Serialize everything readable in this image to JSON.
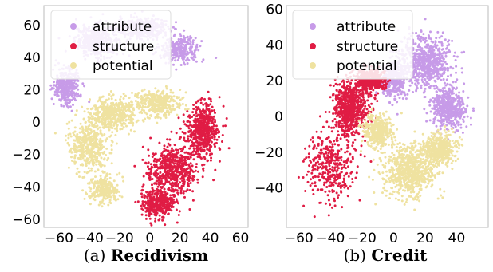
{
  "colors": {
    "attribute": "#c79be8",
    "structure": "#e01c44",
    "potential": "#efe2a0"
  },
  "chart_data": [
    {
      "type": "scatter",
      "caption_prefix": "(a)",
      "caption_title": "Recidivism",
      "xlim": [
        -70,
        65
      ],
      "ylim": [
        -65,
        72
      ],
      "xticks": [
        "−60",
        "−40",
        "−20",
        "0",
        "20",
        "40",
        "60"
      ],
      "xtick_values": [
        -60,
        -40,
        -20,
        0,
        20,
        40,
        60
      ],
      "yticks": [
        "60",
        "40",
        "20",
        "0",
        "−20",
        "−40",
        "−60"
      ],
      "ytick_values": [
        60,
        40,
        20,
        0,
        -20,
        -40,
        -60
      ],
      "legend_position": "top-left",
      "series": [
        {
          "name": "attribute",
          "color": "#c79be8",
          "clusters": [
            {
              "center": [
                -35,
                50
              ],
              "spread": [
                13,
                9
              ],
              "weight": 1
            },
            {
              "center": [
                -5,
                58
              ],
              "spread": [
                15,
                6
              ],
              "weight": 1
            },
            {
              "center": [
                -55,
                22
              ],
              "spread": [
                8,
                10
              ],
              "weight": 0.8
            },
            {
              "center": [
                20,
                45
              ],
              "spread": [
                12,
                7
              ],
              "weight": 0.6
            }
          ]
        },
        {
          "name": "structure",
          "color": "#e01c44",
          "clusters": [
            {
              "center": [
                15,
                -30
              ],
              "spread": [
                15,
                15
              ],
              "weight": 1
            },
            {
              "center": [
                35,
                -5
              ],
              "spread": [
                10,
                15
              ],
              "weight": 0.9
            },
            {
              "center": [
                5,
                -50
              ],
              "spread": [
                10,
                7
              ],
              "weight": 0.6
            }
          ]
        },
        {
          "name": "potential",
          "color": "#efe2a0",
          "clusters": [
            {
              "center": [
                -40,
                -15
              ],
              "spread": [
                12,
                14
              ],
              "weight": 1
            },
            {
              "center": [
                -25,
                5
              ],
              "spread": [
                14,
                9
              ],
              "weight": 1
            },
            {
              "center": [
                5,
                12
              ],
              "spread": [
                14,
                7
              ],
              "weight": 0.8
            },
            {
              "center": [
                -30,
                -42
              ],
              "spread": [
                9,
                7
              ],
              "weight": 0.6
            }
          ]
        }
      ]
    },
    {
      "type": "scatter",
      "caption_prefix": "(b)",
      "caption_title": "Credit",
      "xlim": [
        -68,
        60
      ],
      "ylim": [
        -62,
        62
      ],
      "xticks": [
        "−60",
        "−40",
        "−20",
        "0",
        "20",
        "40"
      ],
      "xtick_values": [
        -60,
        -40,
        -20,
        0,
        20,
        40
      ],
      "yticks": [
        "60",
        "40",
        "20",
        "0",
        "−20",
        "−40"
      ],
      "ytick_values": [
        60,
        40,
        20,
        0,
        -20,
        -40
      ],
      "legend_position": "top-left",
      "series": [
        {
          "name": "attribute",
          "color": "#c79be8",
          "clusters": [
            {
              "center": [
                20,
                30
              ],
              "spread": [
                16,
                13
              ],
              "weight": 1
            },
            {
              "center": [
                35,
                5
              ],
              "spread": [
                10,
                10
              ],
              "weight": 0.7
            },
            {
              "center": [
                0,
                20
              ],
              "spread": [
                8,
                10
              ],
              "weight": 0.5
            }
          ]
        },
        {
          "name": "structure",
          "color": "#e01c44",
          "clusters": [
            {
              "center": [
                -28,
                5
              ],
              "spread": [
                10,
                13
              ],
              "weight": 1
            },
            {
              "center": [
                -15,
                20
              ],
              "spread": [
                8,
                6
              ],
              "weight": 0.6
            },
            {
              "center": [
                -40,
                -28
              ],
              "spread": [
                14,
                17
              ],
              "weight": 0.5
            }
          ]
        },
        {
          "name": "potential",
          "color": "#efe2a0",
          "clusters": [
            {
              "center": [
                10,
                -30
              ],
              "spread": [
                15,
                13
              ],
              "weight": 1
            },
            {
              "center": [
                -10,
                -8
              ],
              "spread": [
                8,
                9
              ],
              "weight": 0.5
            },
            {
              "center": [
                30,
                -18
              ],
              "spread": [
                9,
                8
              ],
              "weight": 0.5
            }
          ]
        }
      ]
    }
  ]
}
